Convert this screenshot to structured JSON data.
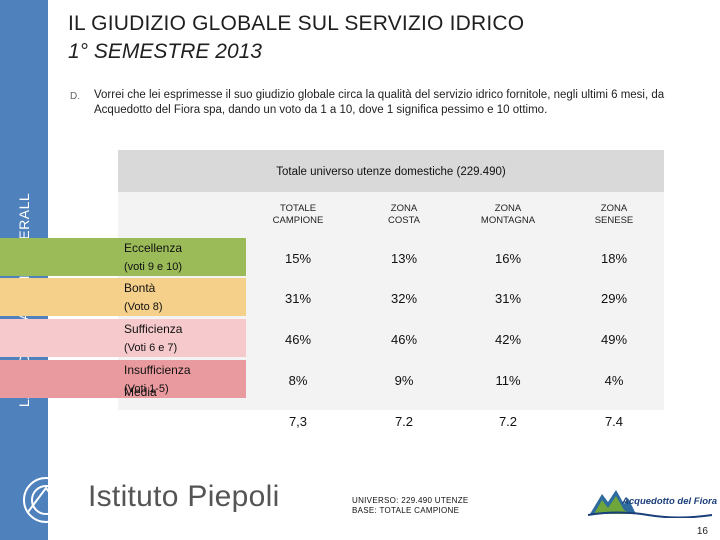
{
  "sidebar": {
    "vertical_text": "LA SODDISFAZIONE OVERALL"
  },
  "title": {
    "line1": "IL GIUDIZIO GLOBALE SUL SERVIZIO IDRICO",
    "line2": "1° SEMESTRE 2013"
  },
  "question": {
    "icon": "D.",
    "text": "Vorrei che lei esprimesse il suo giudizio globale circa la qualità del servizio idrico fornitole, negli ultimi 6 mesi, da Acquedotto del Fiora spa, dando un voto da 1 a 10, dove 1 significa pessimo e 10 ottimo."
  },
  "table": {
    "universe": "Totale universo utenze domestiche (229.490)",
    "columns": [
      {
        "line1": "TOTALE",
        "line2": "CAMPIONE"
      },
      {
        "line1": "ZONA",
        "line2": "COSTA"
      },
      {
        "line1": "ZONA",
        "line2": "MONTAGNA"
      },
      {
        "line1": "ZONA",
        "line2": "SENESE"
      }
    ],
    "rows": [
      {
        "label": "Eccellenza",
        "sub": "(voti 9 e 10)",
        "values": [
          "15%",
          "13%",
          "16%",
          "18%"
        ],
        "color": "#9bbb59"
      },
      {
        "label": "Bontà",
        "sub": "(Voto 8)",
        "values": [
          "31%",
          "32%",
          "31%",
          "29%"
        ],
        "color": "#f5d08a"
      },
      {
        "label": "Sufficienza",
        "sub": "(Voti 6 e 7)",
        "values": [
          "46%",
          "46%",
          "42%",
          "49%"
        ],
        "color": "#f6c9cc"
      },
      {
        "label": "Insufficienza",
        "sub": "(Voti 1-5)",
        "values": [
          "8%",
          "9%",
          "11%",
          "4%"
        ],
        "color": "#e99a9e"
      },
      {
        "label": "Media",
        "sub": "",
        "values": [
          "7,3",
          "7.2",
          "7.2",
          "7.4"
        ],
        "color": "#f3f3f3"
      }
    ]
  },
  "footnote": {
    "line1": "UNIVERSO: 229.490 UTENZE",
    "line2": "BASE: TOTALE CAMPIONE"
  },
  "logos": {
    "left": "Istituto Piepoli",
    "right": "Acquedotto del Fiora"
  },
  "page_number": "16"
}
